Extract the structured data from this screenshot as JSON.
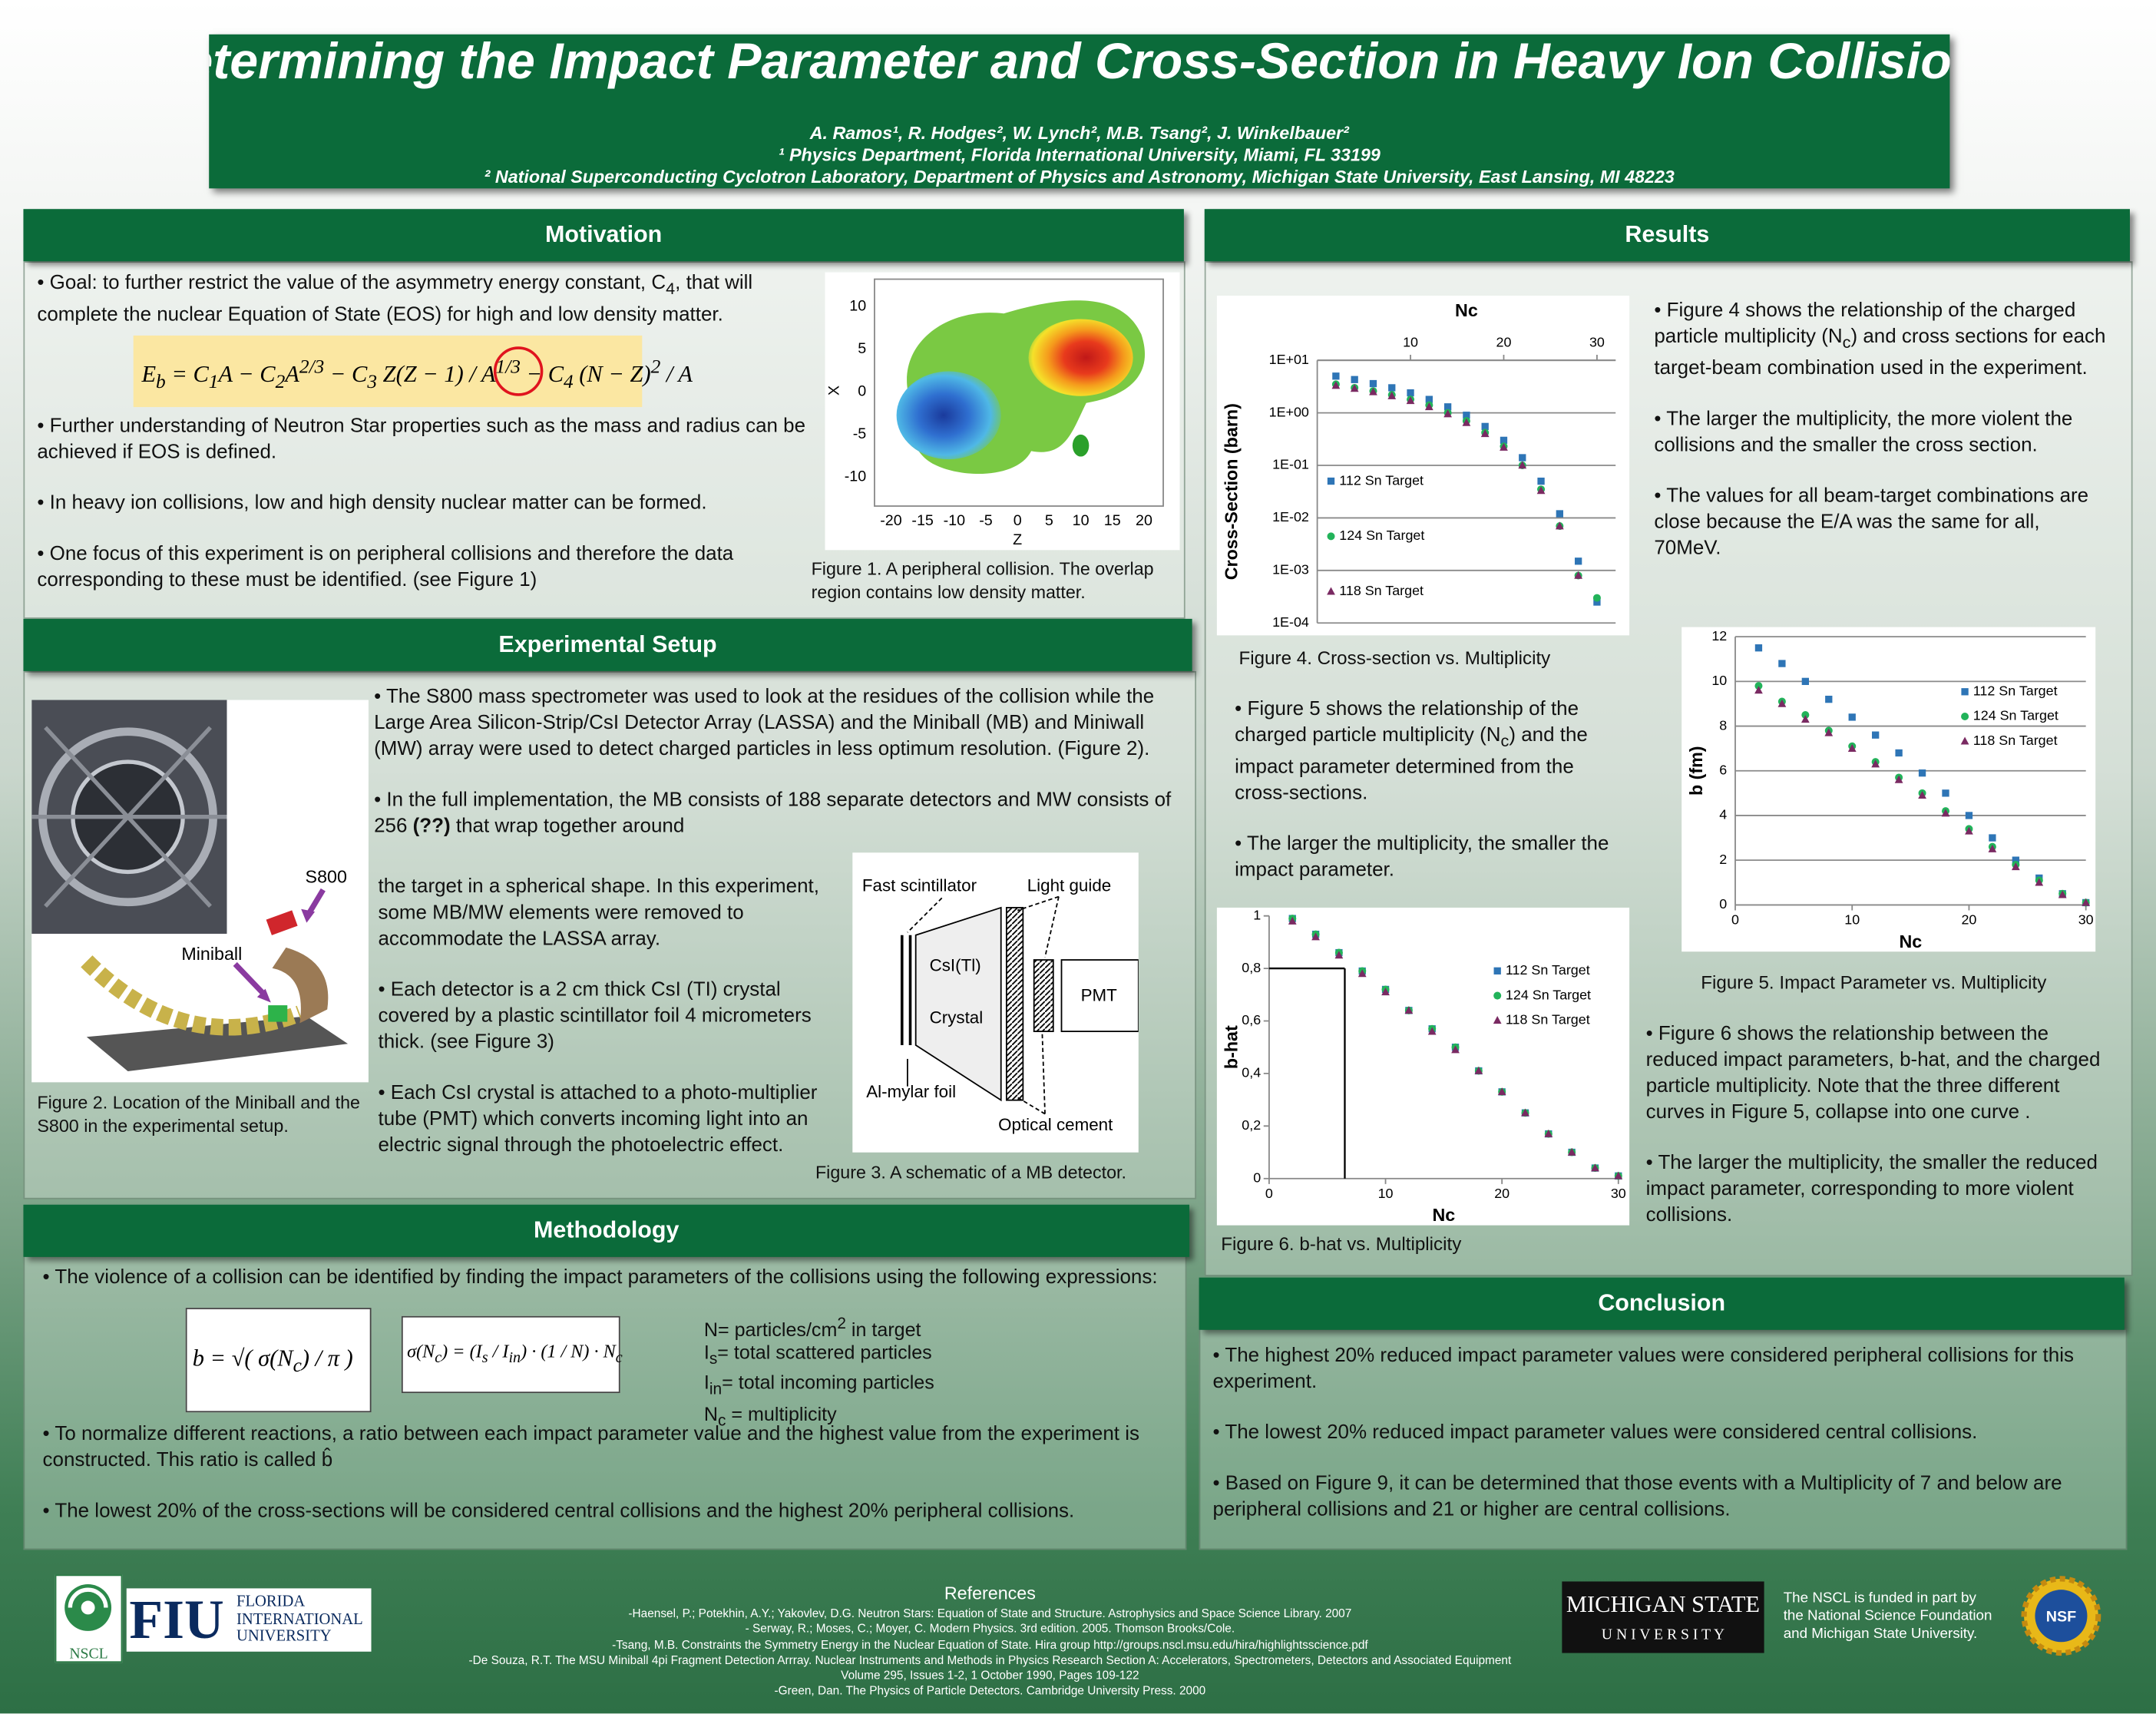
{
  "header": {
    "title": "Determining the Impact Parameter and Cross-Section in Heavy Ion Collisions",
    "authors": "A. Ramos¹, R. Hodges², W. Lynch², M.B. Tsang², J. Winkelbauer²",
    "affiliation_1": "¹ Physics Department, Florida International University, Miami, FL 33199",
    "affiliation_2": "² National Superconducting Cyclotron Laboratory, Department of Physics and Astronomy, Michigan State University, East Lansing, MI 48223"
  },
  "motivation": {
    "heading": "Motivation",
    "intro": [
      "• Goal: to further restrict the value of the asymmetry energy constant, C",
      {
        "sub": "4"
      },
      ", that will complete the nuclear Equation of State (EOS) for high and low density matter."
    ],
    "equation": [
      "E",
      {
        "sub": "b"
      },
      " = C",
      {
        "sub": "1"
      },
      "A − C",
      {
        "sub": "2"
      },
      "A",
      {
        "sup": "2/3"
      },
      " − C",
      {
        "sub": "3"
      },
      " Z(Z − 1) / A",
      {
        "sup": "1/3"
      },
      " − C",
      {
        "sub": "4"
      },
      " (N − Z)",
      {
        "sup": "2"
      },
      " / A"
    ],
    "paragraphs": [
      "• Further understanding of Neutron Star properties such as the mass and radius can be achieved if EOS is defined.",
      "• In heavy ion collisions, low and high density nuclear matter can be formed.",
      "• One focus of this experiment is on peripheral collisions and therefore the data corresponding to these must be identified.  (see Figure 1)"
    ],
    "figure1": {
      "y_ticks": [
        "10",
        "5",
        "0",
        "-5",
        "-10"
      ],
      "x_ticks": [
        "-20",
        "-15",
        "-10",
        "-5",
        "0",
        "5",
        "10",
        "15",
        "20"
      ],
      "x_label": "Z",
      "y_label": "X",
      "caption": "Figure 1. A peripheral collision. The overlap region contains low density matter."
    }
  },
  "setup": {
    "heading": "Experimental Setup",
    "paragraphs_wide": [
      "• The S800 mass spectrometer was used to look at the residues of the collision while the Large Area Silicon-Strip/CsI Detector Array (LASSA) and the Miniball (MB) and Miniwall (MW) array were used to detect charged particles in less optimum resolution. (Figure 2).",
      [
        "• In the full implementation, the MB consists of 188 separate detectors  and MW consists of 256 ",
        {
          "b": "(??)"
        },
        " that wrap together around"
      ]
    ],
    "paragraphs_narrow": [
      "the target in a spherical shape.  In this experiment, some MB/MW elements were removed to accommodate the LASSA array.",
      "• Each detector is a 2 cm thick CsI (TI) crystal covered by a plastic scintillator foil 4 micrometers thick. (see Figure 3)",
      "• Each CsI crystal is attached to a photo-multiplier tube (PMT) which converts incoming light into an electric signal through the photoelectric effect."
    ],
    "figure2": {
      "labels": [
        "S800",
        "Miniball"
      ],
      "caption": "Figure 2. Location of the Miniball and the S800 in the experimental setup."
    },
    "figure3": {
      "fast_scintillator": "Fast scintillator",
      "light_guide": "Light guide",
      "crystal_1": "CsI(Tl)",
      "crystal_2": "Crystal",
      "pmt": "PMT",
      "foil": "Al-mylar foil",
      "cement": "Optical cement",
      "caption": "Figure 3. A schematic of a MB detector."
    }
  },
  "methodology": {
    "heading": "Methodology",
    "intro": "• The violence of a collision can be identified by finding the impact parameters of the collisions using the following expressions:",
    "formula_b": [
      "b = √( σ(N",
      {
        "sub": "c"
      },
      ") / π )"
    ],
    "formula_sigma": [
      "σ(N",
      {
        "sub": "c"
      },
      ") = (I",
      {
        "sub": "s"
      },
      " / I",
      {
        "sub": "in"
      },
      ") · (1 / N) · N",
      {
        "sub": "c"
      }
    ],
    "notes": [
      [
        "N= particles/cm",
        {
          "sup": "2"
        },
        " in target"
      ],
      [
        "I",
        {
          "sub": "s"
        },
        "= total scattered  particles"
      ],
      [
        "I",
        {
          "sub": "in"
        },
        "= total incoming particles"
      ],
      [
        "N",
        {
          "sub": "c"
        },
        " = multiplicity"
      ]
    ],
    "paragraphs": [
      "• To normalize different reactions, a ratio between each impact parameter value and the highest value from the experiment is constructed. This ratio is called b̂",
      "• The lowest 20% of the cross-sections will be considered central collisions and the highest 20% peripheral collisions."
    ]
  },
  "results": {
    "heading": "Results",
    "paragraphs_top": [
      [
        "• Figure 4 shows the relationship of the charged particle multiplicity (N",
        {
          "sub": "c"
        },
        ") and cross sections for each target-beam combination used in the experiment."
      ],
      "• The larger the multiplicity,  the more violent the collisions and the smaller the cross section.",
      "• The values for all beam-target combinations are close because the  E/A was the same for all, 70MeV."
    ],
    "paragraphs_mid": [
      [
        "• Figure 5 shows the relationship of the charged particle multiplicity (N",
        {
          "sub": "c"
        },
        ") and the impact parameter determined from the cross-sections."
      ],
      "• The larger the multiplicity, the smaller the impact parameter."
    ],
    "paragraphs_bottom": [
      "• Figure 6 shows the relationship between the reduced impact parameters, b-hat, and the charged particle multiplicity. Note that the three different curves in Figure 5, collapse into one curve .",
      "• The larger the multiplicity, the smaller the reduced impact parameter, corresponding to more violent collisions."
    ]
  },
  "chart_data": [
    {
      "type": "scatter",
      "title": "Nc",
      "y_label": "Cross-Section (barn)",
      "caption": "Figure 4. Cross-section vs. Multiplicity",
      "x": [
        2,
        4,
        6,
        8,
        10,
        12,
        14,
        16,
        18,
        20,
        22,
        24,
        26,
        28,
        30
      ],
      "xlim": [
        0,
        32
      ],
      "xticks": [
        10,
        20,
        30
      ],
      "x_axis_side": "top",
      "ylim": [
        0.0001,
        10
      ],
      "log_scale": true,
      "yticks": [
        {
          "value": 0.0001,
          "label": "1E-04"
        },
        {
          "value": 0.001,
          "label": "1E-03"
        },
        {
          "value": 0.01,
          "label": "1E-02"
        },
        {
          "value": 0.1,
          "label": "1E-01"
        },
        {
          "value": 1,
          "label": "1E+00"
        },
        {
          "value": 10,
          "label": "1E+01"
        }
      ],
      "grid": true,
      "legend": "left",
      "series": [
        {
          "name": "112 Sn Target",
          "color": "#2e75b6",
          "marker": "square",
          "values": [
            5,
            4.3,
            3.6,
            3.0,
            2.4,
            1.8,
            1.3,
            0.9,
            0.55,
            0.3,
            0.14,
            0.05,
            0.012,
            0.0015,
            0.00025
          ]
        },
        {
          "name": "124 Sn Target",
          "color": "#22b35a",
          "marker": "circle",
          "values": [
            3.5,
            3.0,
            2.6,
            2.2,
            1.8,
            1.4,
            1.0,
            0.7,
            0.42,
            0.23,
            0.1,
            0.035,
            0.007,
            0.0008,
            0.0003
          ]
        },
        {
          "name": "118 Sn Target",
          "color": "#7a2a62",
          "marker": "triangle",
          "values": [
            3.3,
            2.9,
            2.5,
            2.1,
            1.7,
            1.3,
            0.95,
            0.65,
            0.4,
            0.22,
            0.1,
            0.033,
            0.007,
            0.0008,
            null
          ]
        }
      ]
    },
    {
      "type": "scatter",
      "x_label": "Nc",
      "y_label": "b (fm)",
      "caption": "Figure 5. Impact Parameter vs. Multiplicity",
      "x": [
        2,
        4,
        6,
        8,
        10,
        12,
        14,
        16,
        18,
        20,
        22,
        24,
        26,
        28,
        30
      ],
      "xlim": [
        0,
        30
      ],
      "xticks": [
        0,
        10,
        20,
        30
      ],
      "x_axis_side": "bottom",
      "ylim": [
        0,
        12
      ],
      "yticks": [
        0,
        2,
        4,
        6,
        8,
        10,
        12
      ],
      "grid": true,
      "legend": "right",
      "series": [
        {
          "name": "112 Sn Target",
          "color": "#2e75b6",
          "marker": "square",
          "values": [
            11.5,
            10.8,
            10.0,
            9.2,
            8.4,
            7.6,
            6.8,
            5.9,
            5.0,
            4.0,
            3.0,
            2.0,
            1.2,
            0.5,
            0.1
          ]
        },
        {
          "name": "124 Sn Target",
          "color": "#22b35a",
          "marker": "circle",
          "values": [
            9.8,
            9.1,
            8.5,
            7.8,
            7.1,
            6.4,
            5.7,
            5.0,
            4.2,
            3.4,
            2.6,
            1.8,
            1.1,
            0.5,
            0.1
          ]
        },
        {
          "name": "118 Sn Target",
          "color": "#7a2a62",
          "marker": "triangle",
          "values": [
            9.6,
            9.0,
            8.3,
            7.7,
            7.0,
            6.3,
            5.6,
            4.9,
            4.1,
            3.3,
            2.5,
            1.7,
            1.0,
            0.45,
            0.1
          ]
        }
      ]
    },
    {
      "type": "scatter",
      "x_label": "Nc",
      "y_label": "b-hat",
      "caption": "Figure 6. b-hat vs. Multiplicity",
      "x": [
        2,
        4,
        6,
        8,
        10,
        12,
        14,
        16,
        18,
        20,
        22,
        24,
        26,
        28,
        30
      ],
      "xlim": [
        0,
        30
      ],
      "xticks": [
        0,
        10,
        20,
        30
      ],
      "x_axis_side": "bottom",
      "ylim": [
        0,
        1
      ],
      "yticks": [
        0,
        {
          "value": 0.2,
          "label": "0,2"
        },
        {
          "value": 0.4,
          "label": "0,4"
        },
        {
          "value": 0.6,
          "label": "0,6"
        },
        {
          "value": 0.8,
          "label": "0,8"
        },
        1
      ],
      "grid": false,
      "legend": "right",
      "marker_point": {
        "x": 6.5,
        "y": 0.8
      },
      "series": [
        {
          "name": "112 Sn Target",
          "color": "#2e75b6",
          "marker": "square",
          "values": [
            0.99,
            0.93,
            0.86,
            0.79,
            0.72,
            0.64,
            0.57,
            0.5,
            0.41,
            0.33,
            0.25,
            0.17,
            0.1,
            0.04,
            0.01
          ]
        },
        {
          "name": "124 Sn Target",
          "color": "#22b35a",
          "marker": "circle",
          "values": [
            0.99,
            0.93,
            0.86,
            0.79,
            0.72,
            0.64,
            0.57,
            0.5,
            0.41,
            0.33,
            0.25,
            0.17,
            0.1,
            0.04,
            0.01
          ]
        },
        {
          "name": "118 Sn Target",
          "color": "#7a2a62",
          "marker": "triangle",
          "values": [
            0.98,
            0.92,
            0.85,
            0.78,
            0.71,
            0.64,
            0.56,
            0.49,
            0.41,
            0.33,
            0.25,
            0.17,
            0.1,
            0.04,
            0.01
          ]
        }
      ]
    }
  ],
  "conclusion": {
    "heading": "Conclusion",
    "paragraphs": [
      "• The highest 20% reduced impact parameter values were considered peripheral collisions for this experiment.",
      "• The lowest 20% reduced impact parameter values were considered  central collisions.",
      "• Based on Figure 9, it can be determined that those events with a Multiplicity of 7 and below are peripheral collisions and 21 or higher are central collisions."
    ]
  },
  "references": {
    "heading": "References",
    "items": [
      "-Haensel, P.; Potekhin, A.Y.; Yakovlev, D.G. Neutron Stars: Equation of State and Structure. Astrophysics and Space Science Library. 2007",
      "- Serway, R.; Moses, C.; Moyer, C. Modern Physics. 3rd edition. 2005. Thomson Brooks/Cole.",
      "-Tsang, M.B. Constraints the Symmetry Energy in the Nuclear Equation of State. Hira group http://groups.nscl.msu.edu/hira/highlightsscience.pdf",
      "-De Souza, R.T. The MSU Miniball 4pi Fragment Detection Arrray. Nuclear Instruments and Methods in Physics Research Section A: Accelerators, Spectrometers, Detectors and Associated Equipment",
      "Volume 295, Issues 1-2, 1 October 1990, Pages 109-122",
      "-Green, Dan. The Physics of Particle Detectors. Cambridge University Press. 2000"
    ]
  },
  "logos": {
    "nscl": "NSCL",
    "fiu": "FIU",
    "fiu_lines": [
      "FLORIDA",
      "INTERNATIONAL",
      "UNIVERSITY"
    ],
    "msu_1": "MICHIGAN STATE",
    "msu_2": "U N I V E R S I T Y",
    "nsf": "NSF"
  },
  "funding": [
    "The NSCL is funded in part by",
    "the National Science Foundation",
    "and Michigan State University."
  ]
}
